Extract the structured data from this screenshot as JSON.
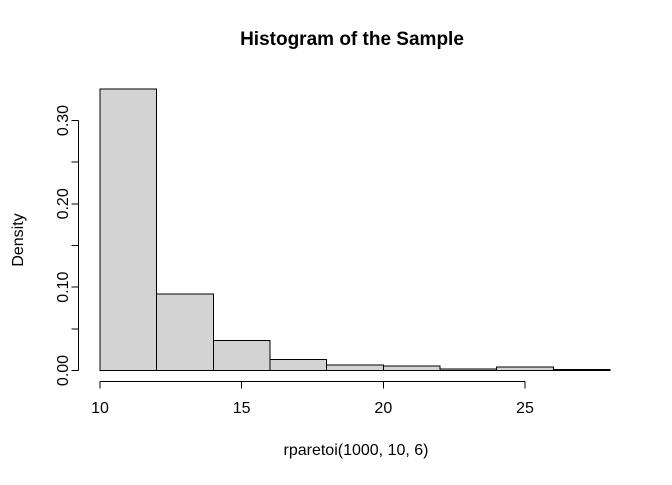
{
  "window": {
    "background": "#ffffff"
  },
  "chart_data": {
    "type": "bar",
    "subtype": "histogram",
    "title": "Histogram of the Sample",
    "xlabel": "rparetoi(1000, 10, 6)",
    "ylabel": "Density",
    "xlim": [
      10,
      28
    ],
    "ylim": [
      0,
      0.35
    ],
    "bin_width": 2,
    "bins": [
      {
        "x0": 10,
        "x1": 12,
        "density": 0.338
      },
      {
        "x0": 12,
        "x1": 14,
        "density": 0.092
      },
      {
        "x0": 14,
        "x1": 16,
        "density": 0.036
      },
      {
        "x0": 16,
        "x1": 18,
        "density": 0.013
      },
      {
        "x0": 18,
        "x1": 20,
        "density": 0.0065
      },
      {
        "x0": 20,
        "x1": 22,
        "density": 0.0055
      },
      {
        "x0": 22,
        "x1": 24,
        "density": 0.002
      },
      {
        "x0": 24,
        "x1": 26,
        "density": 0.004
      },
      {
        "x0": 26,
        "x1": 28,
        "density": 0.001
      }
    ],
    "x_ticks": [
      {
        "value": 10,
        "label": "10"
      },
      {
        "value": 15,
        "label": "15"
      },
      {
        "value": 20,
        "label": "20"
      },
      {
        "value": 25,
        "label": "25"
      }
    ],
    "y_ticks": [
      {
        "value": 0.0,
        "label": "0.00"
      },
      {
        "value": 0.05,
        "label": ""
      },
      {
        "value": 0.1,
        "label": "0.10"
      },
      {
        "value": 0.15,
        "label": ""
      },
      {
        "value": 0.2,
        "label": "0.20"
      },
      {
        "value": 0.25,
        "label": ""
      },
      {
        "value": 0.3,
        "label": "0.30"
      }
    ],
    "grid": false,
    "legend": null,
    "colors": {
      "bar_fill": "#d3d3d3",
      "bar_stroke": "#000000",
      "axis": "#000000",
      "text": "#000000"
    }
  }
}
